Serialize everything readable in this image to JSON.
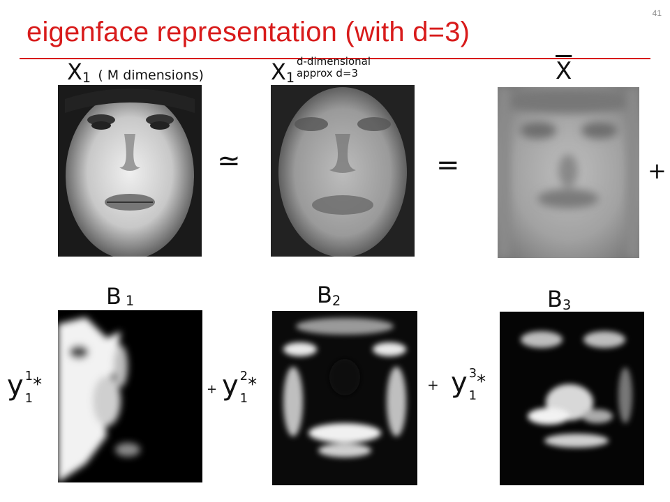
{
  "slide": {
    "number": "41",
    "title": "eigenface representation (with d=3)"
  },
  "row1": {
    "x1_label": "X",
    "x1_sub": "1",
    "x1_note": "( M dimensions)",
    "x1hat_label": "X",
    "x1hat_sub": "1",
    "x1hat_note_line1": "d-dimensional",
    "x1hat_note_line2": "approx d=3",
    "xbar_label": "X",
    "approx_symbol": "≃",
    "equals_symbol": "=",
    "plus_symbol": "+"
  },
  "row2": {
    "b1_label": "B",
    "b1_sub": "1",
    "b2_label": "B",
    "b2_sub": "2",
    "b3_label": "B",
    "b3_sub": "3",
    "coef1": "y",
    "coef1_sup": "1",
    "coef1_sub": "1",
    "coef2": "y",
    "coef2_sup": "2",
    "coef2_sub": "1",
    "coef3": "y",
    "coef3_sup": "3",
    "coef3_sub": "1",
    "times_symbol": "*",
    "plus_symbol": "+"
  },
  "icons": [
    "face-photo",
    "face-reconstruction",
    "mean-face",
    "eigenface-1",
    "eigenface-2",
    "eigenface-3"
  ]
}
